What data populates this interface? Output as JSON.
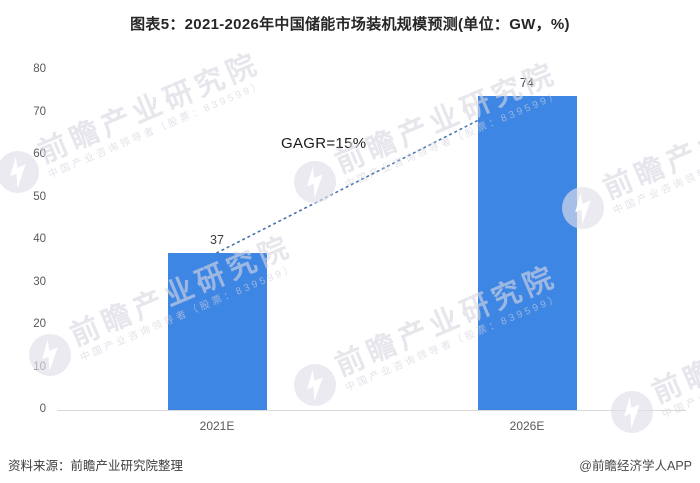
{
  "title": "图表5：2021-2026年中国储能市场装机规模预测(单位：GW，%)",
  "chart_data": {
    "type": "bar",
    "categories": [
      "2021E",
      "2026E"
    ],
    "values": [
      37,
      74
    ],
    "annotation": "GAGR=15%",
    "ylim": [
      0,
      80
    ],
    "yticks": [
      0,
      10,
      20,
      30,
      40,
      50,
      60,
      70,
      80
    ],
    "grid": false,
    "legend": "none",
    "bar_color": "#3E86E4",
    "trendline_color": "#4575A8",
    "axis_line_color": "#D9D9D9",
    "tick_label_color": "#595959",
    "value_label_color": "#404040",
    "xlabel": "",
    "ylabel": ""
  },
  "footer": {
    "source": "资料来源：前瞻产业研究院整理",
    "credit": "@前瞻经济学人APP"
  },
  "watermark": {
    "brand": "前瞻产业研究院",
    "tagline": "中国产业咨询领导者（股票：839599）"
  }
}
